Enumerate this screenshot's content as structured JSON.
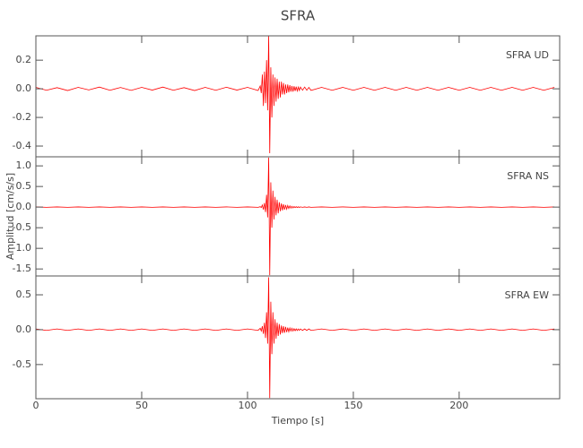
{
  "chart_data": [
    {
      "type": "line",
      "title": "SFRA",
      "annotation": "SFRA   UD",
      "x": [
        0,
        5,
        10,
        15,
        20,
        25,
        30,
        35,
        40,
        45,
        50,
        55,
        60,
        65,
        70,
        75,
        80,
        85,
        90,
        95,
        100,
        105,
        106,
        106.5,
        107,
        107.5,
        108,
        108.5,
        109,
        109.5,
        110,
        110.5,
        111,
        111.5,
        112,
        112.5,
        113,
        113.5,
        114,
        114.5,
        115,
        115.5,
        116,
        116.5,
        117,
        117.5,
        118,
        118.5,
        119,
        119.5,
        120,
        120.5,
        121,
        121.5,
        122,
        122.5,
        123,
        123.5,
        124,
        124.5,
        125,
        126,
        127,
        128,
        129,
        130,
        135,
        140,
        145,
        150,
        155,
        160,
        165,
        170,
        175,
        180,
        185,
        190,
        195,
        200,
        205,
        210,
        215,
        220,
        225,
        230,
        235,
        240,
        245
      ],
      "series": [
        {
          "color": "#ff0000",
          "values": [
            0.01,
            -0.01,
            0.008,
            -0.012,
            0.01,
            -0.008,
            0.012,
            -0.01,
            0.009,
            -0.011,
            0.01,
            -0.009,
            0.012,
            -0.01,
            0.008,
            -0.012,
            0.01,
            -0.01,
            0.011,
            -0.009,
            0.01,
            -0.012,
            0.02,
            -0.03,
            0.1,
            -0.12,
            0.12,
            -0.1,
            0.2,
            -0.15,
            0.37,
            -0.45,
            0.15,
            -0.2,
            0.1,
            -0.12,
            0.08,
            -0.09,
            0.07,
            -0.07,
            0.05,
            -0.06,
            0.05,
            -0.04,
            0.04,
            -0.04,
            0.03,
            -0.03,
            0.03,
            -0.025,
            0.025,
            -0.02,
            0.02,
            -0.02,
            0.018,
            -0.015,
            0.015,
            -0.015,
            0.012,
            -0.012,
            0.012,
            -0.01,
            0.012,
            -0.01,
            0.01,
            -0.011,
            0.01,
            -0.01,
            0.01,
            -0.01,
            0.01,
            -0.01,
            0.01,
            -0.01,
            0.01,
            -0.01,
            0.01,
            -0.01,
            0.01,
            -0.01,
            0.01,
            -0.01,
            0.01,
            -0.01,
            0.01,
            -0.01,
            0.01,
            -0.01,
            0.01
          ]
        }
      ],
      "xlim": [
        0,
        247.5
      ],
      "xticks": [
        0,
        50,
        100,
        150,
        200
      ],
      "ylim": [
        -0.475,
        0.37
      ],
      "yticks": [
        0.2,
        {
          "value": 0,
          "label": "0.0"
        },
        -0.2,
        -0.4
      ]
    },
    {
      "type": "line",
      "ylabel": "Amplitud [cm/s/s]",
      "annotation": "SFRA   NS",
      "x": [
        0,
        5,
        10,
        15,
        20,
        25,
        30,
        35,
        40,
        45,
        50,
        55,
        60,
        65,
        70,
        75,
        80,
        85,
        90,
        95,
        100,
        105,
        106,
        106.5,
        107,
        107.5,
        108,
        108.5,
        109,
        109.5,
        110,
        110.5,
        111,
        111.5,
        112,
        112.5,
        113,
        113.5,
        114,
        114.5,
        115,
        115.5,
        116,
        116.5,
        117,
        117.5,
        118,
        118.5,
        119,
        119.5,
        120,
        120.5,
        121,
        121.5,
        122,
        122.5,
        123,
        123.5,
        124,
        124.5,
        125,
        126,
        127,
        128,
        129,
        130,
        135,
        140,
        145,
        150,
        155,
        160,
        165,
        170,
        175,
        180,
        185,
        190,
        195,
        200,
        205,
        210,
        215,
        220,
        225,
        230,
        235,
        240,
        245
      ],
      "series": [
        {
          "color": "#ff0000",
          "values": [
            0.005,
            -0.005,
            0.005,
            -0.005,
            0.005,
            -0.005,
            0.005,
            -0.005,
            0.005,
            -0.005,
            0.005,
            -0.005,
            0.005,
            -0.005,
            0.005,
            -0.005,
            0.005,
            -0.005,
            0.005,
            -0.005,
            0.005,
            -0.005,
            0.01,
            -0.01,
            0.05,
            -0.06,
            0.1,
            -0.12,
            0.3,
            -0.25,
            1.2,
            -1.65,
            0.6,
            -0.5,
            0.4,
            -0.3,
            0.25,
            -0.2,
            0.18,
            -0.15,
            0.12,
            -0.1,
            0.09,
            -0.08,
            0.07,
            -0.06,
            0.05,
            -0.05,
            0.04,
            -0.035,
            0.03,
            -0.025,
            0.02,
            -0.02,
            0.015,
            -0.012,
            0.01,
            -0.01,
            0.008,
            -0.008,
            0.006,
            -0.005,
            0.005,
            -0.005,
            0.005,
            -0.005,
            0.005,
            -0.005,
            0.005,
            -0.005,
            0.005,
            -0.005,
            0.005,
            -0.005,
            0.005,
            -0.005,
            0.005,
            -0.005,
            0.005,
            -0.005,
            0.005,
            -0.005,
            0.005,
            -0.005,
            0.005,
            -0.005,
            0.005,
            -0.005,
            0.005
          ]
        }
      ],
      "xlim": [
        0,
        247.5
      ],
      "xticks": [
        0,
        50,
        100,
        150,
        200
      ],
      "ylim": [
        -1.67,
        1.22
      ],
      "yticks": [
        {
          "value": 1,
          "label": "1.0"
        },
        0.5,
        {
          "value": 0,
          "label": "0.0"
        },
        -0.5,
        {
          "value": -1,
          "label": "-1.0"
        },
        -1.5
      ]
    },
    {
      "type": "line",
      "xlabel": "Tiempo [s]",
      "annotation": "SFRA   EW",
      "x": [
        0,
        5,
        10,
        15,
        20,
        25,
        30,
        35,
        40,
        45,
        50,
        55,
        60,
        65,
        70,
        75,
        80,
        85,
        90,
        95,
        100,
        105,
        106,
        106.5,
        107,
        107.5,
        108,
        108.5,
        109,
        109.5,
        110,
        110.5,
        111,
        111.5,
        112,
        112.5,
        113,
        113.5,
        114,
        114.5,
        115,
        115.5,
        116,
        116.5,
        117,
        117.5,
        118,
        118.5,
        119,
        119.5,
        120,
        120.5,
        121,
        121.5,
        122,
        122.5,
        123,
        123.5,
        124,
        124.5,
        125,
        126,
        127,
        128,
        129,
        130,
        135,
        140,
        145,
        150,
        155,
        160,
        165,
        170,
        175,
        180,
        185,
        190,
        195,
        200,
        205,
        210,
        215,
        220,
        225,
        230,
        235,
        240,
        245
      ],
      "series": [
        {
          "color": "#ff0000",
          "values": [
            0.01,
            -0.01,
            0.01,
            -0.01,
            0.01,
            -0.01,
            0.01,
            -0.01,
            0.01,
            -0.01,
            0.01,
            -0.01,
            0.01,
            -0.01,
            0.01,
            -0.01,
            0.01,
            -0.01,
            0.01,
            -0.01,
            0.01,
            -0.01,
            0.02,
            -0.02,
            0.05,
            -0.06,
            0.1,
            -0.12,
            0.25,
            -0.2,
            0.75,
            -0.98,
            0.4,
            -0.35,
            0.25,
            -0.2,
            0.15,
            -0.13,
            0.1,
            -0.09,
            0.08,
            -0.07,
            0.06,
            -0.05,
            0.05,
            -0.045,
            0.04,
            -0.035,
            0.03,
            -0.03,
            0.025,
            -0.02,
            0.02,
            -0.02,
            0.015,
            -0.015,
            0.012,
            -0.012,
            0.01,
            -0.01,
            0.01,
            -0.01,
            0.01,
            -0.01,
            0.01,
            -0.01,
            0.01,
            -0.01,
            0.01,
            -0.01,
            0.01,
            -0.01,
            0.01,
            -0.01,
            0.01,
            -0.01,
            0.01,
            -0.01,
            0.01,
            -0.01,
            0.01,
            -0.01,
            0.01,
            -0.01,
            0.01,
            -0.01,
            0.01,
            -0.01,
            0.01
          ]
        }
      ],
      "xlim": [
        0,
        247.5
      ],
      "xticks": [
        0,
        50,
        100,
        150,
        200
      ],
      "ylim": [
        -0.99,
        0.77
      ],
      "yticks": [
        0.5,
        {
          "value": 0,
          "label": "0.0"
        },
        -0.5
      ]
    }
  ]
}
